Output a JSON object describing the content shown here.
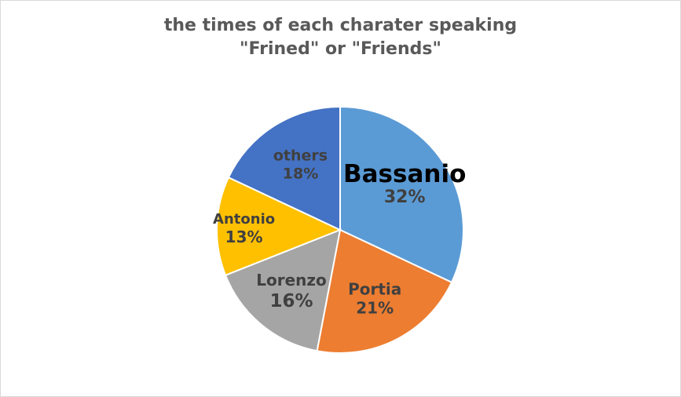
{
  "chart_data": {
    "type": "pie",
    "title": [
      "the times of each charater speaking",
      "\"Frined\" or \"Friends\""
    ],
    "slices": [
      {
        "label": "Bassanio",
        "percent_label": "32%",
        "value": 32,
        "color": "#5b9bd5"
      },
      {
        "label": "Portia",
        "percent_label": "21%",
        "value": 21,
        "color": "#ed7d31"
      },
      {
        "label": "Lorenzo",
        "percent_label": "16%",
        "value": 16,
        "color": "#a5a5a5"
      },
      {
        "label": "Antonio",
        "percent_label": "13%",
        "value": 13,
        "color": "#ffc000"
      },
      {
        "label": "others",
        "percent_label": "18%",
        "value": 18,
        "color": "#4472c4"
      }
    ],
    "legend": "none",
    "data_labels": "category-and-percent"
  }
}
